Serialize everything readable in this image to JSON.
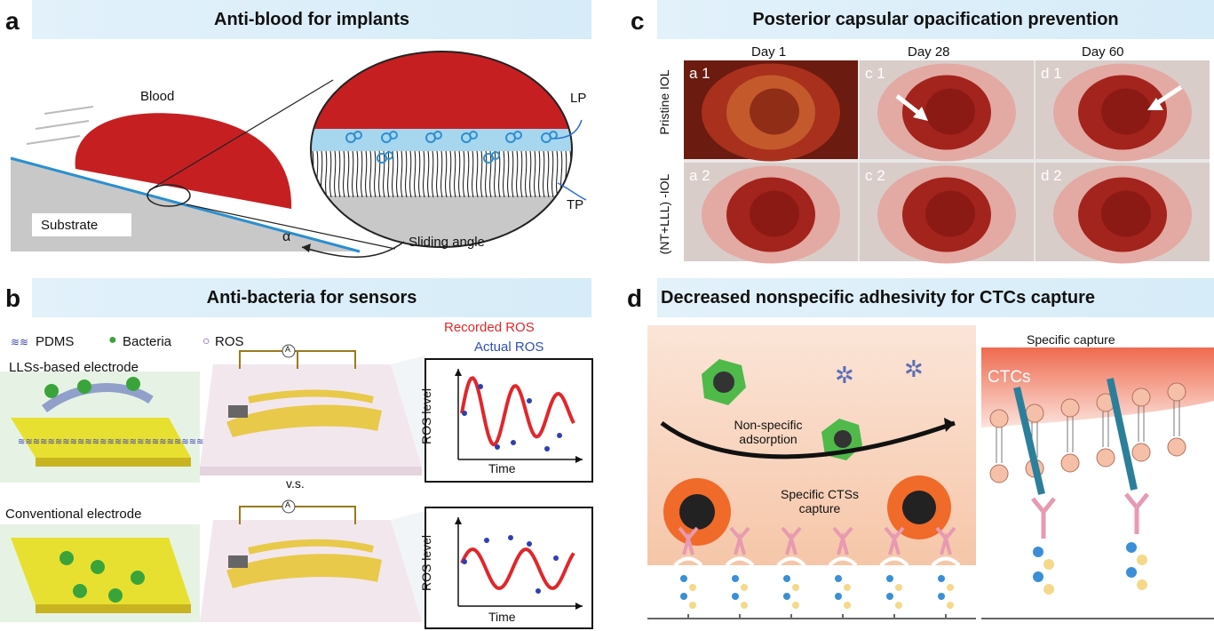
{
  "panels": {
    "a": {
      "letter": "a",
      "title": "Anti-blood for implants",
      "labels": {
        "blood": "Blood",
        "substrate": "Substrate",
        "lp": "LP",
        "tp": "TP",
        "sliding_angle": "Sliding angle",
        "alpha": "α"
      }
    },
    "b": {
      "letter": "b",
      "title": "Anti-bacteria for sensors",
      "legend": {
        "pdms": "PDMS",
        "bacteria": "Bacteria",
        "ros": "ROS"
      },
      "llss_electrode": "LLSs-based electrode",
      "conventional_electrode": "Conventional electrode",
      "vs": "v.s.",
      "ammeter": "A",
      "recorded_ros": "Recorded ROS",
      "actual_ros": "Actual ROS",
      "plot_ylabel": "ROS level",
      "plot_xlabel": "Time"
    },
    "c": {
      "letter": "c",
      "title": "Posterior capsular opacification prevention",
      "columns": [
        "Day 1",
        "Day 28",
        "Day 60"
      ],
      "rows": [
        "Pristine IOL",
        "(NT+LLL) -IOL"
      ],
      "tile_labels": [
        [
          "a 1",
          "c 1",
          "d 1"
        ],
        [
          "a 2",
          "c 2",
          "d 2"
        ]
      ]
    },
    "d": {
      "letter": "d",
      "title": "Decreased nonspecific adhesivity for CTCs capture",
      "nonspecific": "Non-specific adsorption",
      "specific_ctss": "Specific CTSs capture",
      "specific_capture": "Specific capture",
      "ctcs": "CTCs"
    }
  },
  "colors": {
    "band": "#dcEEF8",
    "blood": "#c61f22",
    "accent_blue": "#2f6fd0",
    "gold": "#e8c94a",
    "red_curve": "#e0272b"
  }
}
